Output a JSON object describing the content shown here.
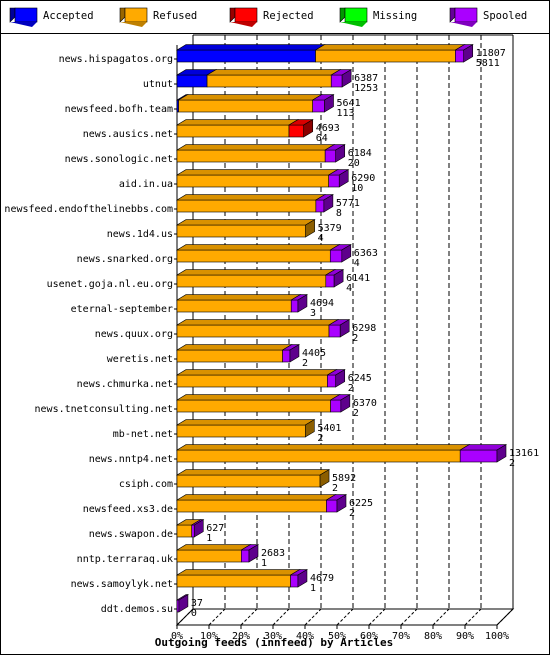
{
  "chart_data": {
    "type": "bar",
    "orientation": "horizontal",
    "stacked": true,
    "style": "3d",
    "title": "Outgoing feeds (innfeed) by Articles",
    "xlim": [
      0,
      100
    ],
    "x_tick_labels": [
      "0%",
      "10%",
      "20%",
      "30%",
      "40%",
      "50%",
      "60%",
      "70%",
      "80%",
      "90%",
      "100%"
    ],
    "grid": "vertical dashed",
    "legend_position": "top",
    "legend": [
      {
        "label": "Accepted",
        "color": "#0000ff"
      },
      {
        "label": "Refused",
        "color": "#ffaa00"
      },
      {
        "label": "Rejected",
        "color": "#ff0000"
      },
      {
        "label": "Missing",
        "color": "#00ff00"
      },
      {
        "label": "Spooled",
        "color": "#aa00ff"
      }
    ],
    "categories": [
      "news.hispagatos.org",
      "utnut",
      "newsfeed.bofh.team",
      "news.ausics.net",
      "news.sonologic.net",
      "aid.in.ua",
      "newsfeed.endofthelinebbs.com",
      "news.1d4.us",
      "news.snarked.org",
      "usenet.goja.nl.eu.org",
      "eternal-september",
      "news.quux.org",
      "weretis.net",
      "news.chmurka.net",
      "news.tnetconsulting.net",
      "mb-net.net",
      "news.nntp4.net",
      "csiph.com",
      "newsfeed.xs3.de",
      "news.swapon.de",
      "nntp.terraraq.uk",
      "news.samoylyk.net",
      "ddt.demos.su"
    ],
    "label_top": [
      "11807",
      "6387",
      "5641",
      "4693",
      "6184",
      "6290",
      "5771",
      "5379",
      "6363",
      "6141",
      "4694",
      "6298",
      "4405",
      "6245",
      "6370",
      "5401",
      "13161",
      "5892",
      "6225",
      "627",
      "2683",
      "4679",
      "37"
    ],
    "label_bottom": [
      "5811",
      "1253",
      "113",
      "64",
      "20",
      "10",
      "8",
      "4",
      "4",
      "4",
      "3",
      "2",
      "2",
      "2",
      "2",
      "2",
      "2",
      "2",
      "2",
      "1",
      "1",
      "1",
      "0"
    ],
    "series": [
      {
        "name": "Accepted",
        "values": [
          43.3,
          9.4,
          0.5,
          0,
          0,
          0,
          0,
          0,
          0,
          0,
          0,
          0,
          0,
          0,
          0,
          0,
          0,
          0,
          0,
          0,
          0,
          0,
          0
        ]
      },
      {
        "name": "Refused",
        "values": [
          43.7,
          38.8,
          41.9,
          35.0,
          46.3,
          47.4,
          43.4,
          40.2,
          47.9,
          46.5,
          35.7,
          47.5,
          33.0,
          47.0,
          48.0,
          40.1,
          88.5,
          44.7,
          46.7,
          4.6,
          20.1,
          35.5,
          0
        ]
      },
      {
        "name": "Rejected",
        "values": [
          0,
          0,
          0,
          4.6,
          0,
          0,
          0,
          0,
          0,
          0,
          0,
          0,
          0,
          0,
          0,
          0,
          0,
          0,
          0,
          0,
          0,
          0,
          0
        ]
      },
      {
        "name": "Missing",
        "values": [
          0,
          0,
          0,
          0,
          0,
          0,
          0,
          0,
          0,
          0,
          0,
          0,
          0,
          0,
          0,
          0,
          0,
          0,
          0,
          0,
          0,
          0,
          0
        ]
      },
      {
        "name": "Spooled",
        "values": [
          2.6,
          3.4,
          3.7,
          0,
          3.3,
          3.3,
          2.5,
          0,
          3.6,
          2.6,
          2.1,
          3.5,
          2.3,
          2.6,
          3.2,
          0,
          11.5,
          0,
          3.3,
          0.8,
          2.4,
          2.3,
          0.6
        ]
      }
    ]
  }
}
